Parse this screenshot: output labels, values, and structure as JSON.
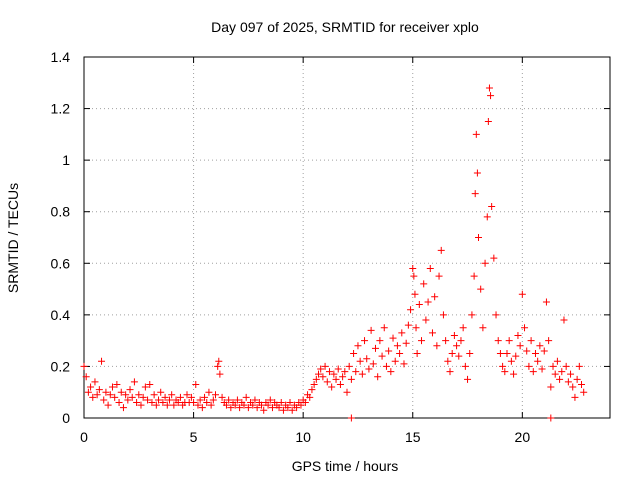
{
  "chart_data": {
    "type": "scatter",
    "title": "Day 097 of 2025, SRMTID for receiver xplo",
    "xlabel": "GPS time / hours",
    "ylabel": "SRMTID / TECUs",
    "xlim": [
      0,
      24
    ],
    "ylim": [
      0,
      1.4
    ],
    "xticks": [
      0,
      5,
      10,
      15,
      20
    ],
    "yticks": [
      0,
      0.2,
      0.4,
      0.6,
      0.8,
      1,
      1.2,
      1.4
    ],
    "xtick_labels": [
      "0",
      "5",
      "10",
      "15",
      "20"
    ],
    "ytick_labels": [
      "0",
      "0.2",
      "0.4",
      "0.6",
      "0.8",
      "1",
      "1.2",
      "1.4"
    ],
    "grid": true,
    "marker": "+",
    "color": "#ff0000",
    "series": [
      {
        "name": "SRMTID",
        "points": [
          [
            0.0,
            0.2
          ],
          [
            0.1,
            0.16
          ],
          [
            0.2,
            0.1
          ],
          [
            0.3,
            0.12
          ],
          [
            0.4,
            0.08
          ],
          [
            0.5,
            0.14
          ],
          [
            0.6,
            0.09
          ],
          [
            0.7,
            0.11
          ],
          [
            0.8,
            0.22
          ],
          [
            0.9,
            0.07
          ],
          [
            1.0,
            0.1
          ],
          [
            1.1,
            0.05
          ],
          [
            1.2,
            0.09
          ],
          [
            1.3,
            0.12
          ],
          [
            1.4,
            0.08
          ],
          [
            1.5,
            0.13
          ],
          [
            1.6,
            0.06
          ],
          [
            1.7,
            0.1
          ],
          [
            1.8,
            0.04
          ],
          [
            1.9,
            0.09
          ],
          [
            2.0,
            0.07
          ],
          [
            2.1,
            0.11
          ],
          [
            2.2,
            0.08
          ],
          [
            2.3,
            0.14
          ],
          [
            2.4,
            0.06
          ],
          [
            2.5,
            0.09
          ],
          [
            2.6,
            0.05
          ],
          [
            2.7,
            0.08
          ],
          [
            2.8,
            0.12
          ],
          [
            2.9,
            0.07
          ],
          [
            3.0,
            0.13
          ],
          [
            3.1,
            0.06
          ],
          [
            3.2,
            0.09
          ],
          [
            3.3,
            0.05
          ],
          [
            3.4,
            0.07
          ],
          [
            3.5,
            0.1
          ],
          [
            3.6,
            0.06
          ],
          [
            3.7,
            0.08
          ],
          [
            3.8,
            0.05
          ],
          [
            3.9,
            0.07
          ],
          [
            4.0,
            0.09
          ],
          [
            4.1,
            0.05
          ],
          [
            4.2,
            0.07
          ],
          [
            4.3,
            0.06
          ],
          [
            4.4,
            0.08
          ],
          [
            4.5,
            0.05
          ],
          [
            4.6,
            0.06
          ],
          [
            4.7,
            0.09
          ],
          [
            4.8,
            0.06
          ],
          [
            4.9,
            0.08
          ],
          [
            5.0,
            0.06
          ],
          [
            5.1,
            0.13
          ],
          [
            5.2,
            0.05
          ],
          [
            5.3,
            0.07
          ],
          [
            5.4,
            0.04
          ],
          [
            5.5,
            0.08
          ],
          [
            5.6,
            0.06
          ],
          [
            5.7,
            0.1
          ],
          [
            5.8,
            0.05
          ],
          [
            5.9,
            0.07
          ],
          [
            6.0,
            0.09
          ],
          [
            6.1,
            0.2
          ],
          [
            6.15,
            0.22
          ],
          [
            6.2,
            0.17
          ],
          [
            6.3,
            0.08
          ],
          [
            6.4,
            0.06
          ],
          [
            6.5,
            0.05
          ],
          [
            6.6,
            0.07
          ],
          [
            6.7,
            0.04
          ],
          [
            6.8,
            0.06
          ],
          [
            6.9,
            0.05
          ],
          [
            7.0,
            0.07
          ],
          [
            7.1,
            0.04
          ],
          [
            7.2,
            0.06
          ],
          [
            7.3,
            0.05
          ],
          [
            7.4,
            0.08
          ],
          [
            7.5,
            0.04
          ],
          [
            7.6,
            0.06
          ],
          [
            7.7,
            0.05
          ],
          [
            7.8,
            0.07
          ],
          [
            7.9,
            0.04
          ],
          [
            8.0,
            0.06
          ],
          [
            8.1,
            0.05
          ],
          [
            8.2,
            0.03
          ],
          [
            8.3,
            0.06
          ],
          [
            8.4,
            0.05
          ],
          [
            8.5,
            0.07
          ],
          [
            8.6,
            0.04
          ],
          [
            8.7,
            0.06
          ],
          [
            8.8,
            0.05
          ],
          [
            8.9,
            0.04
          ],
          [
            9.0,
            0.06
          ],
          [
            9.1,
            0.03
          ],
          [
            9.2,
            0.05
          ],
          [
            9.3,
            0.04
          ],
          [
            9.4,
            0.06
          ],
          [
            9.5,
            0.03
          ],
          [
            9.6,
            0.05
          ],
          [
            9.7,
            0.04
          ],
          [
            9.8,
            0.06
          ],
          [
            9.9,
            0.05
          ],
          [
            10.0,
            0.07
          ],
          [
            10.1,
            0.06
          ],
          [
            10.2,
            0.09
          ],
          [
            10.3,
            0.08
          ],
          [
            10.4,
            0.11
          ],
          [
            10.5,
            0.13
          ],
          [
            10.6,
            0.15
          ],
          [
            10.7,
            0.17
          ],
          [
            10.8,
            0.19
          ],
          [
            10.9,
            0.16
          ],
          [
            11.0,
            0.2
          ],
          [
            11.1,
            0.14
          ],
          [
            11.2,
            0.18
          ],
          [
            11.3,
            0.12
          ],
          [
            11.4,
            0.17
          ],
          [
            11.5,
            0.15
          ],
          [
            11.6,
            0.19
          ],
          [
            11.7,
            0.13
          ],
          [
            11.8,
            0.16
          ],
          [
            11.9,
            0.18
          ],
          [
            12.0,
            0.1
          ],
          [
            12.1,
            0.2
          ],
          [
            12.2,
            0.15
          ],
          [
            12.3,
            0.25
          ],
          [
            12.4,
            0.18
          ],
          [
            12.5,
            0.28
          ],
          [
            12.6,
            0.22
          ],
          [
            12.7,
            0.17
          ],
          [
            12.8,
            0.3
          ],
          [
            12.9,
            0.23
          ],
          [
            13.0,
            0.19
          ],
          [
            13.1,
            0.34
          ],
          [
            13.2,
            0.21
          ],
          [
            13.3,
            0.27
          ],
          [
            13.4,
            0.16
          ],
          [
            13.5,
            0.3
          ],
          [
            13.6,
            0.24
          ],
          [
            13.7,
            0.35
          ],
          [
            13.8,
            0.2
          ],
          [
            13.9,
            0.26
          ],
          [
            14.0,
            0.18
          ],
          [
            14.1,
            0.31
          ],
          [
            14.2,
            0.22
          ],
          [
            14.3,
            0.28
          ],
          [
            14.4,
            0.25
          ],
          [
            14.5,
            0.33
          ],
          [
            14.6,
            0.21
          ],
          [
            14.7,
            0.29
          ],
          [
            14.8,
            0.36
          ],
          [
            14.9,
            0.42
          ],
          [
            15.0,
            0.58
          ],
          [
            15.05,
            0.55
          ],
          [
            15.1,
            0.48
          ],
          [
            15.15,
            0.35
          ],
          [
            15.2,
            0.25
          ],
          [
            15.3,
            0.44
          ],
          [
            15.4,
            0.3
          ],
          [
            15.5,
            0.52
          ],
          [
            15.6,
            0.38
          ],
          [
            15.7,
            0.45
          ],
          [
            15.8,
            0.58
          ],
          [
            15.9,
            0.33
          ],
          [
            16.0,
            0.47
          ],
          [
            16.1,
            0.28
          ],
          [
            16.2,
            0.55
          ],
          [
            16.3,
            0.65
          ],
          [
            16.4,
            0.4
          ],
          [
            16.5,
            0.3
          ],
          [
            16.6,
            0.22
          ],
          [
            16.7,
            0.18
          ],
          [
            16.8,
            0.25
          ],
          [
            16.9,
            0.32
          ],
          [
            17.0,
            0.28
          ],
          [
            17.1,
            0.24
          ],
          [
            17.2,
            0.3
          ],
          [
            17.3,
            0.35
          ],
          [
            17.4,
            0.2
          ],
          [
            17.5,
            0.15
          ],
          [
            17.6,
            0.25
          ],
          [
            17.7,
            0.4
          ],
          [
            17.8,
            0.55
          ],
          [
            17.85,
            0.87
          ],
          [
            17.9,
            1.1
          ],
          [
            17.95,
            0.95
          ],
          [
            18.0,
            0.7
          ],
          [
            18.1,
            0.5
          ],
          [
            18.2,
            0.35
          ],
          [
            18.3,
            0.6
          ],
          [
            18.4,
            0.78
          ],
          [
            18.45,
            1.15
          ],
          [
            18.5,
            1.28
          ],
          [
            18.55,
            1.25
          ],
          [
            18.6,
            0.82
          ],
          [
            18.7,
            0.62
          ],
          [
            18.8,
            0.4
          ],
          [
            18.9,
            0.3
          ],
          [
            19.0,
            0.25
          ],
          [
            19.1,
            0.2
          ],
          [
            19.2,
            0.18
          ],
          [
            19.3,
            0.25
          ],
          [
            19.4,
            0.3
          ],
          [
            19.5,
            0.22
          ],
          [
            19.6,
            0.17
          ],
          [
            19.7,
            0.24
          ],
          [
            19.8,
            0.32
          ],
          [
            19.9,
            0.28
          ],
          [
            20.0,
            0.48
          ],
          [
            20.1,
            0.35
          ],
          [
            20.2,
            0.26
          ],
          [
            20.3,
            0.2
          ],
          [
            20.4,
            0.3
          ],
          [
            20.5,
            0.18
          ],
          [
            20.6,
            0.25
          ],
          [
            20.7,
            0.22
          ],
          [
            20.8,
            0.28
          ],
          [
            20.9,
            0.19
          ],
          [
            21.0,
            0.26
          ],
          [
            21.1,
            0.45
          ],
          [
            21.2,
            0.3
          ],
          [
            21.3,
            0.12
          ],
          [
            21.4,
            0.2
          ],
          [
            21.5,
            0.17
          ],
          [
            21.6,
            0.22
          ],
          [
            21.7,
            0.15
          ],
          [
            21.8,
            0.18
          ],
          [
            21.9,
            0.38
          ],
          [
            22.0,
            0.2
          ],
          [
            22.1,
            0.14
          ],
          [
            22.2,
            0.17
          ],
          [
            22.3,
            0.12
          ],
          [
            22.4,
            0.08
          ],
          [
            22.5,
            0.15
          ],
          [
            22.6,
            0.2
          ],
          [
            22.7,
            0.13
          ],
          [
            22.8,
            0.1
          ],
          [
            12.2,
            0.0
          ],
          [
            21.3,
            0.0
          ]
        ]
      }
    ]
  }
}
